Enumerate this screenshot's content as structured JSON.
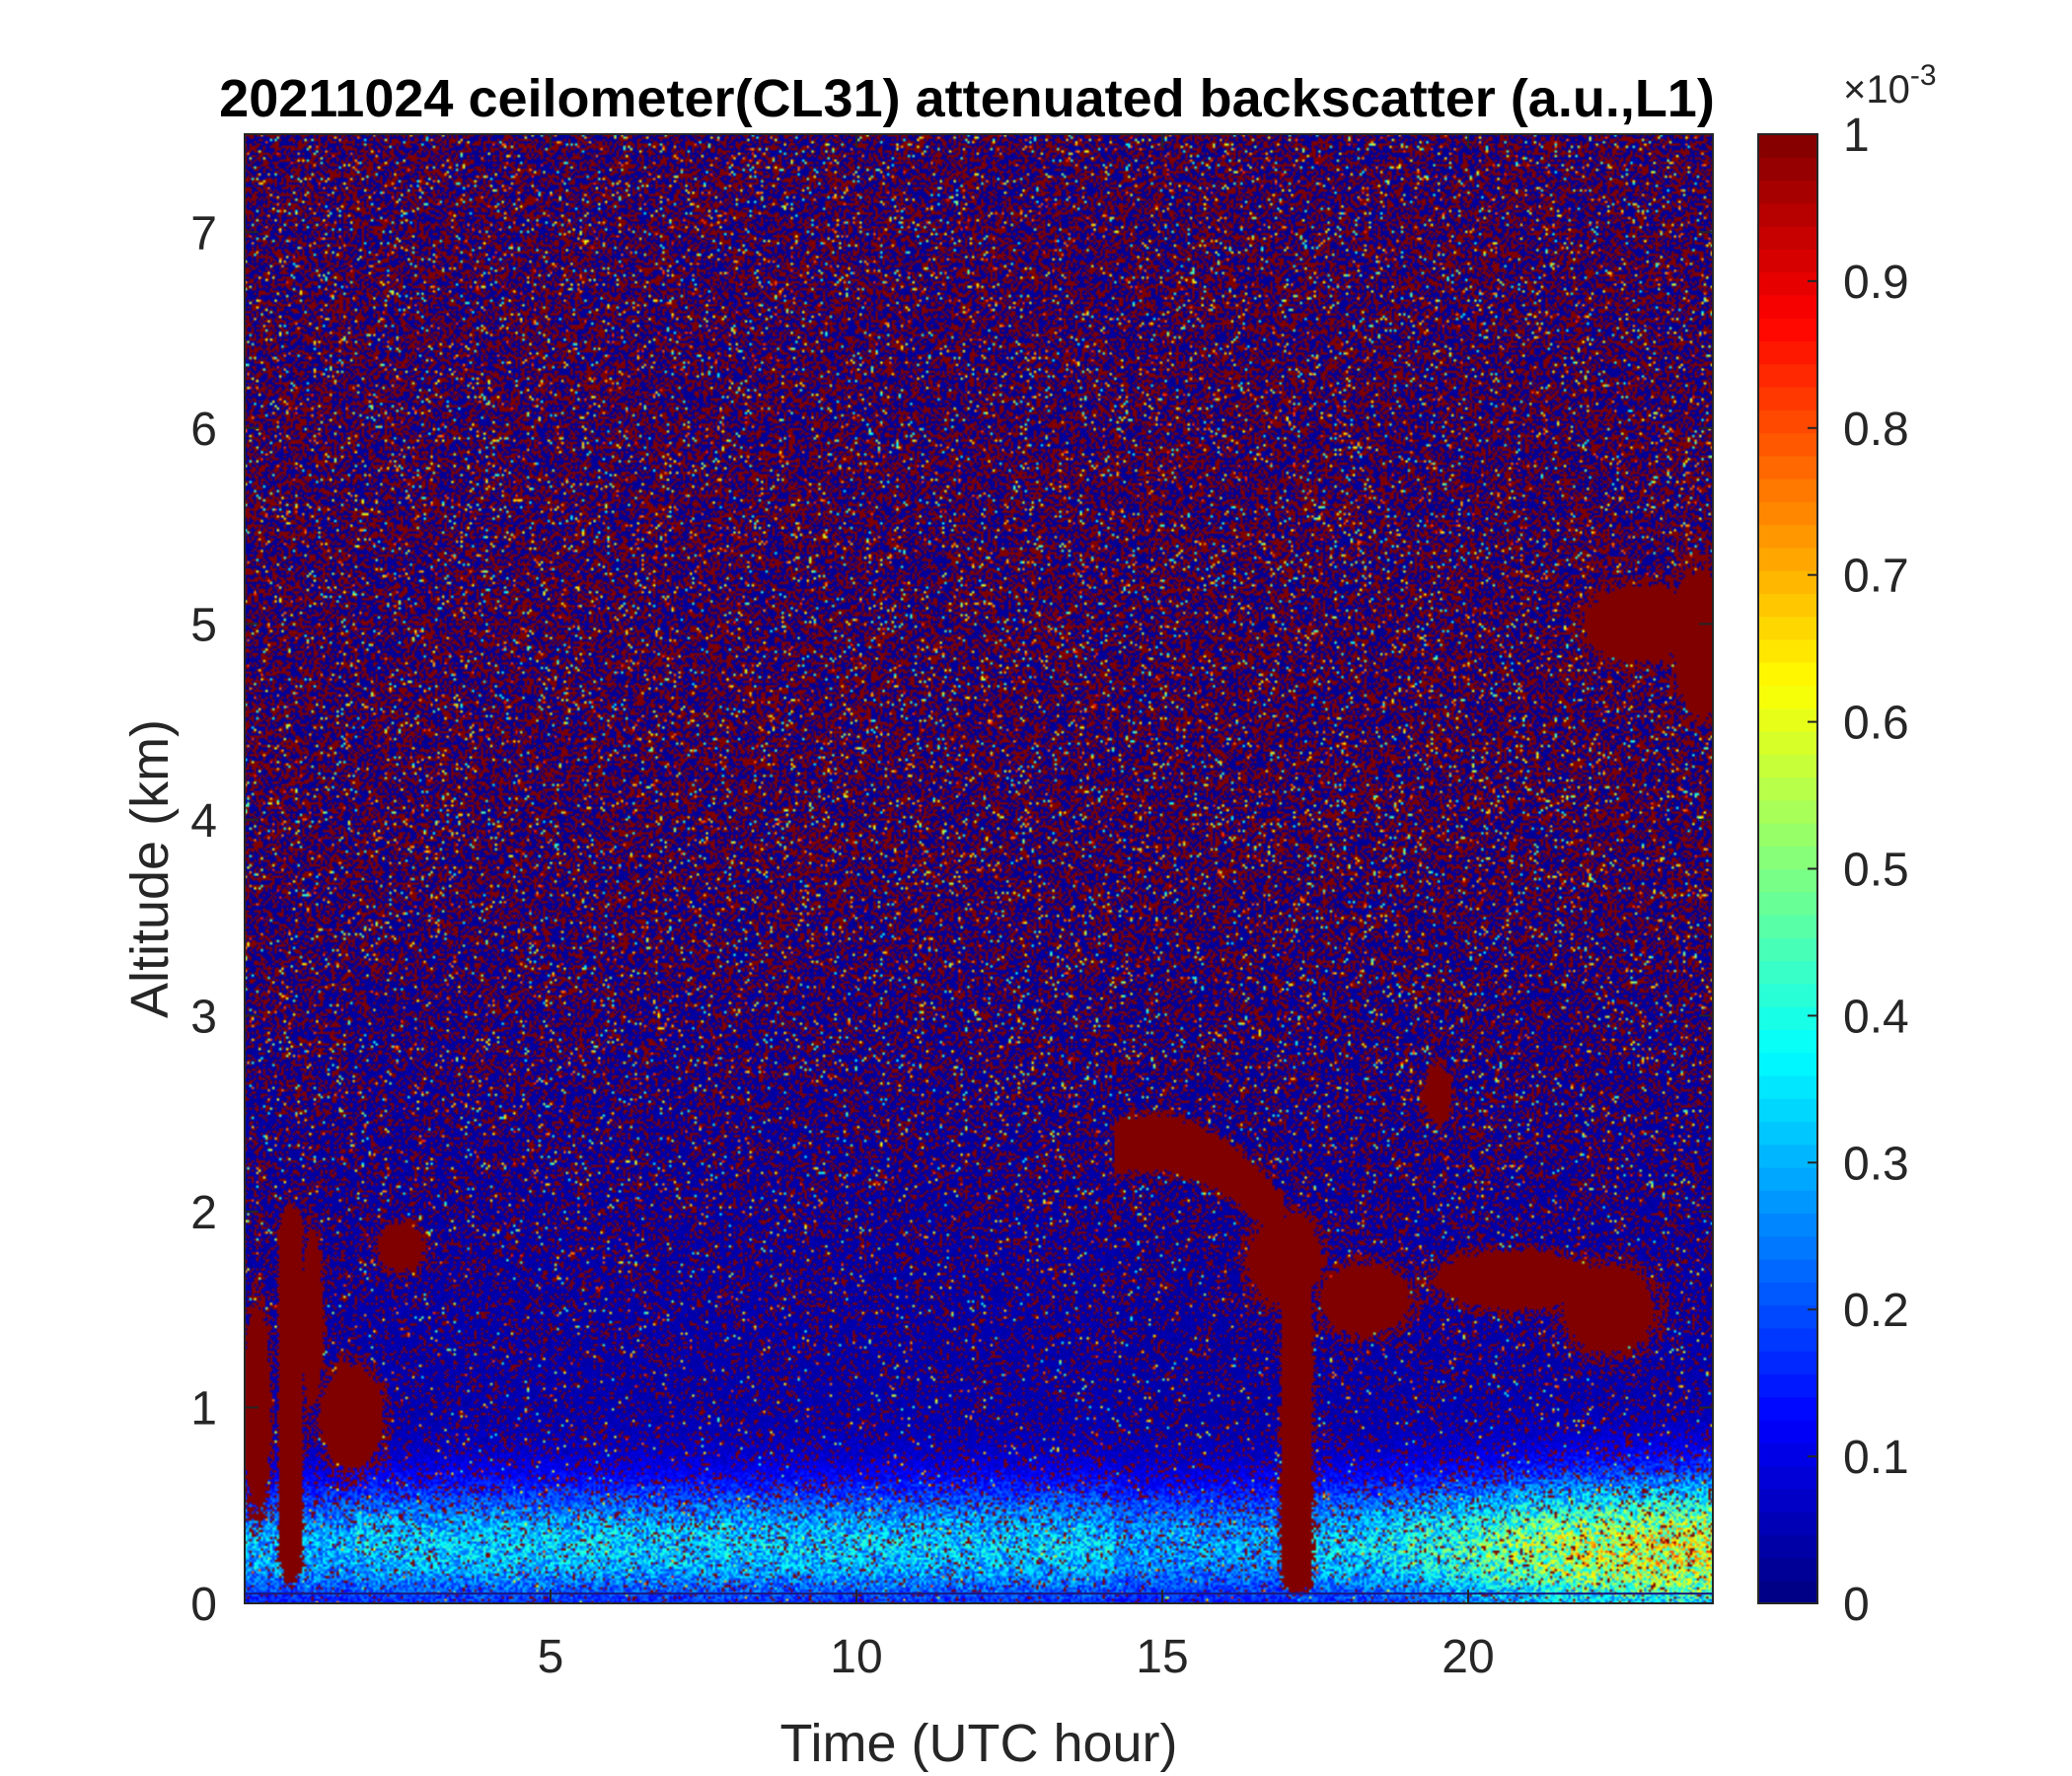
{
  "chart_data": {
    "type": "heatmap",
    "title": "20211024 ceilometer(CL31) attenuated backscatter (a.u.,L1)",
    "xlabel": "Time (UTC hour)",
    "ylabel": "Altitude (km)",
    "xlim": [
      0,
      24
    ],
    "ylim": [
      0,
      7.5
    ],
    "xticks": [
      5,
      10,
      15,
      20
    ],
    "yticks": [
      0,
      1,
      2,
      3,
      4,
      5,
      6,
      7
    ],
    "colorbar": {
      "colormap": "jet",
      "clim": [
        0,
        1
      ],
      "multiplier": "×10",
      "exponent": "-3",
      "ticks": [
        0,
        0.1,
        0.2,
        0.3,
        0.4,
        0.5,
        0.6,
        0.7,
        0.8,
        0.9,
        1
      ]
    },
    "features": {
      "near_surface_high_layer_km": [
        0,
        0.6
      ],
      "late_day_high_surface_layer_hours": [
        17.2,
        24
      ],
      "thick_plume_hour": 17.2,
      "upper_layer_cloud": {
        "hours": [
          21.8,
          24
        ],
        "altitude_km": [
          4.6,
          5.3
        ]
      },
      "low_clouds_early": {
        "hours": [
          0,
          2.5
        ],
        "altitude_km": [
          0.6,
          2.0
        ]
      },
      "mid_clouds_afternoon": {
        "hours": [
          14.3,
          23
        ],
        "altitude_km": [
          1.2,
          2.6
        ]
      }
    }
  }
}
